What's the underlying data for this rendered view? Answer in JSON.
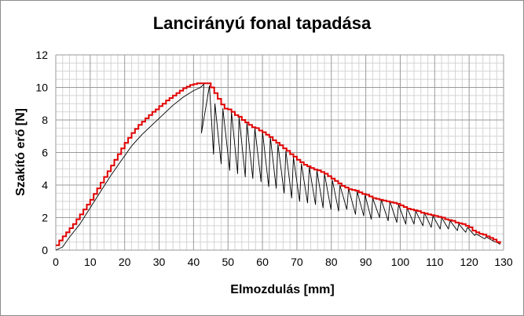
{
  "chart_data": {
    "type": "line",
    "title": "Lancirányú fonal tapadása",
    "xlabel": "Elmozdulás [mm]",
    "ylabel": "Szakító erő [N]",
    "xlim": [
      0,
      130
    ],
    "ylim": [
      0,
      12
    ],
    "x_ticks": [
      "0",
      "10",
      "20",
      "30",
      "40",
      "50",
      "60",
      "70",
      "80",
      "90",
      "100",
      "110",
      "120",
      "130"
    ],
    "y_ticks": [
      "0",
      "2",
      "4",
      "6",
      "8",
      "10",
      "12"
    ],
    "grid": true,
    "legend": false,
    "series": [
      {
        "color": "#000000",
        "style": "measured",
        "rise": [
          [
            0,
            0
          ],
          [
            2,
            0.2
          ],
          [
            4,
            0.8
          ],
          [
            7,
            1.6
          ],
          [
            10,
            2.6
          ],
          [
            13,
            3.6
          ],
          [
            16,
            4.6
          ],
          [
            19,
            5.5
          ],
          [
            22,
            6.4
          ],
          [
            25,
            7.1
          ],
          [
            28,
            7.7
          ],
          [
            31,
            8.3
          ],
          [
            34,
            8.9
          ],
          [
            37,
            9.4
          ],
          [
            40,
            9.8
          ],
          [
            42,
            10.0
          ]
        ],
        "peaks": [
          [
            43,
            10.2
          ],
          [
            44.6,
            10.1
          ],
          [
            46.2,
            9.0
          ],
          [
            48.5,
            8.7
          ],
          [
            51,
            8.5
          ],
          [
            53.2,
            8.2
          ],
          [
            55.5,
            7.8
          ],
          [
            57.8,
            7.5
          ],
          [
            60,
            7.3
          ],
          [
            62.3,
            6.9
          ],
          [
            64.5,
            6.5
          ],
          [
            66.8,
            6.1
          ],
          [
            69,
            5.7
          ],
          [
            71.3,
            5.3
          ],
          [
            73.6,
            5.1
          ],
          [
            75.8,
            4.9
          ],
          [
            78,
            4.7
          ],
          [
            80.3,
            4.3
          ],
          [
            82.5,
            4.0
          ],
          [
            85,
            3.8
          ],
          [
            87.5,
            3.6
          ],
          [
            89.8,
            3.4
          ],
          [
            92,
            3.2
          ],
          [
            94.5,
            3.1
          ],
          [
            97,
            3.0
          ],
          [
            99.5,
            2.8
          ],
          [
            102,
            2.6
          ],
          [
            104.5,
            2.4
          ],
          [
            107,
            2.3
          ],
          [
            109.5,
            2.1
          ],
          [
            112,
            2.0
          ],
          [
            114.5,
            1.8
          ],
          [
            117,
            1.6
          ],
          [
            119.5,
            1.4
          ],
          [
            122,
            1.0
          ],
          [
            125,
            0.8
          ],
          [
            128,
            0.5
          ]
        ],
        "troughs": [
          [
            42.3,
            7.2
          ],
          [
            45.8,
            5.9
          ],
          [
            48,
            5.3
          ],
          [
            50.5,
            4.9
          ],
          [
            52.8,
            4.7
          ],
          [
            55,
            4.5
          ],
          [
            57.2,
            4.4
          ],
          [
            59.6,
            4.2
          ],
          [
            61.8,
            3.9
          ],
          [
            64,
            3.8
          ],
          [
            66.3,
            3.5
          ],
          [
            68.5,
            3.2
          ],
          [
            70.8,
            3.0
          ],
          [
            73.1,
            2.9
          ],
          [
            75.4,
            2.8
          ],
          [
            77.6,
            2.6
          ],
          [
            79.9,
            2.5
          ],
          [
            82.1,
            2.4
          ],
          [
            84.5,
            2.5
          ],
          [
            87,
            2.2
          ],
          [
            89.4,
            2.1
          ],
          [
            91.6,
            1.9
          ],
          [
            94,
            2.0
          ],
          [
            96.5,
            1.8
          ],
          [
            99,
            1.7
          ],
          [
            101.6,
            1.6
          ],
          [
            104,
            1.6
          ],
          [
            106.6,
            1.5
          ],
          [
            109,
            1.4
          ],
          [
            111.6,
            1.3
          ],
          [
            114,
            1.3
          ],
          [
            116.6,
            1.2
          ],
          [
            119,
            1.1
          ],
          [
            121.6,
            0.9
          ],
          [
            124.5,
            0.7
          ],
          [
            127.5,
            0.5
          ]
        ],
        "end": [
          129,
          0.35
        ]
      },
      {
        "color": "#e00000",
        "style": "envelope",
        "values": [
          [
            0,
            0.3
          ],
          [
            1,
            0.6
          ],
          [
            2,
            0.85
          ],
          [
            3,
            1.1
          ],
          [
            4,
            1.35
          ],
          [
            5,
            1.6
          ],
          [
            6,
            1.9
          ],
          [
            7,
            2.2
          ],
          [
            8,
            2.5
          ],
          [
            9,
            2.8
          ],
          [
            10,
            3.1
          ],
          [
            11,
            3.45
          ],
          [
            12,
            3.8
          ],
          [
            13,
            4.15
          ],
          [
            14,
            4.5
          ],
          [
            15,
            4.85
          ],
          [
            16,
            5.2
          ],
          [
            17,
            5.55
          ],
          [
            18,
            5.9
          ],
          [
            19,
            6.25
          ],
          [
            20,
            6.6
          ],
          [
            21,
            6.9
          ],
          [
            22,
            7.2
          ],
          [
            23,
            7.45
          ],
          [
            24,
            7.7
          ],
          [
            25,
            7.9
          ],
          [
            26,
            8.1
          ],
          [
            27,
            8.3
          ],
          [
            28,
            8.5
          ],
          [
            29,
            8.65
          ],
          [
            30,
            8.85
          ],
          [
            31,
            9.0
          ],
          [
            32,
            9.2
          ],
          [
            33,
            9.35
          ],
          [
            34,
            9.5
          ],
          [
            35,
            9.65
          ],
          [
            36,
            9.8
          ],
          [
            37,
            9.95
          ],
          [
            38,
            10.05
          ],
          [
            39,
            10.15
          ],
          [
            40,
            10.2
          ],
          [
            41,
            10.25
          ],
          [
            42,
            10.25
          ],
          [
            43,
            10.25
          ],
          [
            44,
            10.25
          ],
          [
            45,
            10.0
          ],
          [
            46,
            9.65
          ],
          [
            47,
            9.3
          ],
          [
            48,
            8.95
          ],
          [
            49,
            8.7
          ],
          [
            50,
            8.65
          ],
          [
            51,
            8.5
          ],
          [
            52,
            8.3
          ],
          [
            53,
            8.2
          ],
          [
            54,
            8.0
          ],
          [
            55,
            7.85
          ],
          [
            56,
            7.7
          ],
          [
            57,
            7.55
          ],
          [
            58,
            7.5
          ],
          [
            59,
            7.35
          ],
          [
            60,
            7.25
          ],
          [
            61,
            7.1
          ],
          [
            62,
            6.95
          ],
          [
            63,
            6.75
          ],
          [
            64,
            6.6
          ],
          [
            65,
            6.45
          ],
          [
            66,
            6.25
          ],
          [
            67,
            6.1
          ],
          [
            68,
            5.9
          ],
          [
            69,
            5.75
          ],
          [
            70,
            5.55
          ],
          [
            71,
            5.4
          ],
          [
            72,
            5.25
          ],
          [
            73,
            5.15
          ],
          [
            74,
            5.05
          ],
          [
            75,
            4.95
          ],
          [
            76,
            4.9
          ],
          [
            77,
            4.8
          ],
          [
            78,
            4.7
          ],
          [
            79,
            4.55
          ],
          [
            80,
            4.4
          ],
          [
            81,
            4.25
          ],
          [
            82,
            4.1
          ],
          [
            83,
            3.95
          ],
          [
            84,
            3.85
          ],
          [
            85,
            3.75
          ],
          [
            86,
            3.7
          ],
          [
            87,
            3.65
          ],
          [
            88,
            3.55
          ],
          [
            89,
            3.45
          ],
          [
            90,
            3.4
          ],
          [
            91,
            3.3
          ],
          [
            92,
            3.2
          ],
          [
            93,
            3.15
          ],
          [
            94,
            3.1
          ],
          [
            95,
            3.05
          ],
          [
            96,
            3.0
          ],
          [
            97,
            2.95
          ],
          [
            98,
            2.9
          ],
          [
            99,
            2.85
          ],
          [
            100,
            2.75
          ],
          [
            101,
            2.65
          ],
          [
            102,
            2.55
          ],
          [
            103,
            2.5
          ],
          [
            104,
            2.45
          ],
          [
            105,
            2.4
          ],
          [
            106,
            2.3
          ],
          [
            107,
            2.25
          ],
          [
            108,
            2.2
          ],
          [
            109,
            2.15
          ],
          [
            110,
            2.1
          ],
          [
            111,
            2.05
          ],
          [
            112,
            2.0
          ],
          [
            113,
            1.9
          ],
          [
            114,
            1.85
          ],
          [
            115,
            1.8
          ],
          [
            116,
            1.7
          ],
          [
            117,
            1.65
          ],
          [
            118,
            1.6
          ],
          [
            119,
            1.5
          ],
          [
            120,
            1.4
          ],
          [
            121,
            1.2
          ],
          [
            122,
            1.1
          ],
          [
            123,
            1.0
          ],
          [
            124,
            0.95
          ],
          [
            125,
            0.85
          ],
          [
            126,
            0.75
          ],
          [
            127,
            0.65
          ],
          [
            128,
            0.5
          ],
          [
            129,
            0.4
          ]
        ]
      }
    ]
  }
}
